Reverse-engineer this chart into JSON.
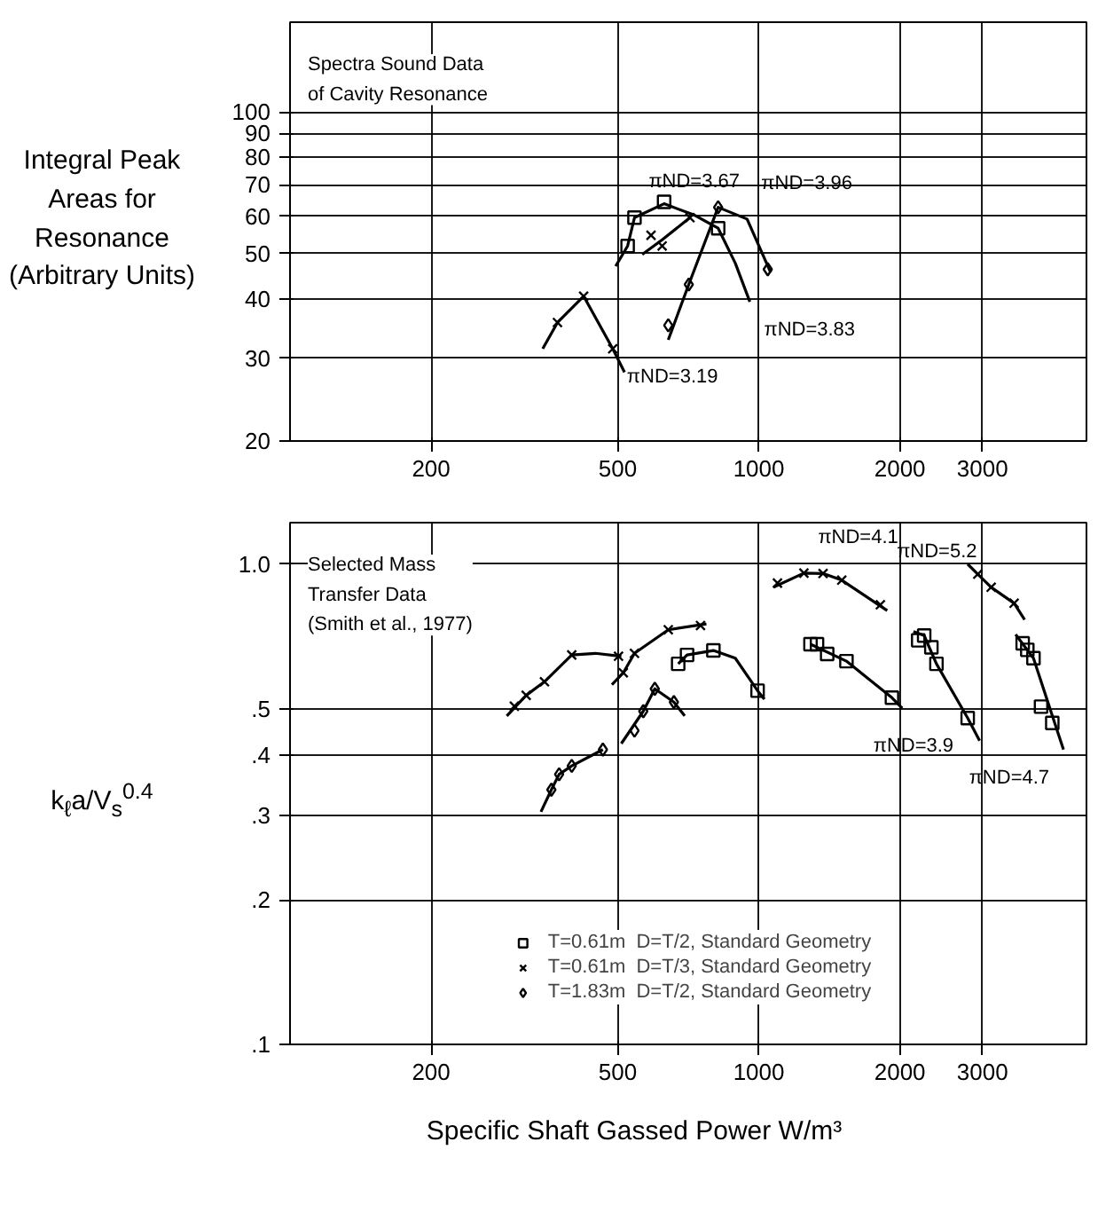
{
  "chart_data": [
    {
      "type": "scatter",
      "ylabel": "Integral Peak Areas for Resonance (Arbitrary Units)",
      "log": "xy",
      "grid": true,
      "xlim": [
        100,
        5000
      ],
      "ylim": [
        20,
        155
      ],
      "xticks": [
        200,
        500,
        1000,
        2000,
        3000
      ],
      "yticks": [
        20,
        30,
        40,
        50,
        60,
        70,
        80,
        90,
        100
      ],
      "annotations": [
        "Spectra Sound Data\nof Cavity Resonance",
        {
          "text": "πND=3.67",
          "x": 543,
          "y": 59.6
        },
        {
          "text": "πND=3.96",
          "x": 944,
          "y": 59.2
        },
        {
          "text": "πND=3.19",
          "x": 488,
          "y": 31.4
        },
        {
          "text": "πND=3.83",
          "x": 957,
          "y": 39.5
        }
      ],
      "series": [
        {
          "type": "line",
          "color": "#000000",
          "x": [
            346,
            372,
            423,
            488,
            517
          ],
          "values": [
            31.4,
            35.7,
            40.6,
            31.4,
            28.0
          ]
        },
        {
          "type": "line",
          "color": "#000000",
          "x": [
            495,
            525,
            543,
            628,
            730,
            819,
            891,
            957
          ],
          "values": [
            47.0,
            51.9,
            59.6,
            63.8,
            60.3,
            56.6,
            47.7,
            39.5
          ]
        },
        {
          "type": "line",
          "color": "#000000",
          "x": [
            564,
            622,
            713
          ],
          "values": [
            49.8,
            53.5,
            59.6
          ]
        },
        {
          "type": "line",
          "color": "#000000",
          "x": [
            641,
            709,
            819,
            944,
            1060
          ],
          "values": [
            32.8,
            43.0,
            62.7,
            59.2,
            45.6
          ]
        },
        {
          "type": "scatter",
          "marker": "square",
          "color": "#000000",
          "x": [
            525,
            543,
            628,
            819
          ],
          "values": [
            51.9,
            59.6,
            64.4,
            56.6
          ]
        },
        {
          "type": "scatter",
          "marker": "cross",
          "color": "#000000",
          "x": [
            372,
            423,
            488,
            589,
            622,
            713
          ],
          "values": [
            35.7,
            40.6,
            31.4,
            54.7,
            51.9,
            59.6
          ]
        },
        {
          "type": "scatter",
          "marker": "diamond",
          "color": "#000000",
          "x": [
            641,
            709,
            819,
            1045
          ],
          "values": [
            35.2,
            43.0,
            62.7,
            46.3
          ]
        }
      ]
    },
    {
      "type": "scatter",
      "xlabel": "Specific Shaft Gassed Power W/m³",
      "ylabel": "k$_{ℓ}$a/V$_{s}$$^{0.4}$",
      "log": "xy",
      "grid": true,
      "legend": "bottom",
      "xlim": [
        100,
        5000
      ],
      "ylim": [
        0.1,
        1.22
      ],
      "xticks": [
        200,
        500,
        1000,
        2000,
        3000
      ],
      "yticks": [
        {
          "value": 0.1,
          "label": ".1"
        },
        {
          "value": 0.2,
          "label": ".2"
        },
        {
          "value": 0.3,
          "label": ".3"
        },
        {
          "value": 0.4,
          "label": ".4"
        },
        {
          "value": 0.5,
          "label": ".5"
        },
        {
          "value": 1.0,
          "label": "1.0"
        }
      ],
      "annotations": [
        "Selected Mass\nTransfer Data\n(Smith et al., 1977)",
        {
          "text": "πND=4.1",
          "x": 1248,
          "y": 0.958
        },
        {
          "text": "πND=5.2",
          "x": 3131,
          "y": 0.895
        },
        {
          "text": "πND=3.9",
          "x": 2790,
          "y": 0.478
        },
        {
          "text": "πND=4.7",
          "x": 4466,
          "y": 0.411
        }
      ],
      "series": [
        {
          "type": "scatter",
          "name": "T=0.61m  D=T/2, Standard Geometry",
          "marker": "square",
          "color": "#000000",
          "x": [
            673,
            703,
            800,
            994,
            1289,
            1331,
            1399,
            1538,
            1923,
            2188,
            2253,
            2334,
            2393,
            2790,
            3655,
            3739,
            3854,
            4000,
            4227
          ],
          "values": [
            0.62,
            0.647,
            0.661,
            0.545,
            0.681,
            0.681,
            0.65,
            0.628,
            0.527,
            0.694,
            0.71,
            0.671,
            0.62,
            0.478,
            0.684,
            0.663,
            0.637,
            0.505,
            0.467
          ]
        },
        {
          "type": "scatter",
          "name": "T=0.61m  D=T/3, Standard Geometry",
          "marker": "cross",
          "color": "#000000",
          "x": [
            301,
            319,
            349,
            399,
            502,
            514,
            543,
            641,
            751,
            1096,
            1248,
            1371,
            1503,
            1817,
            2932,
            3131,
            3505
          ],
          "values": [
            0.506,
            0.533,
            0.569,
            0.647,
            0.643,
            0.594,
            0.652,
            0.73,
            0.745,
            0.913,
            0.958,
            0.956,
            0.926,
            0.823,
            0.953,
            0.895,
            0.829
          ]
        },
        {
          "type": "scatter",
          "name": "T=1.83m  D=T/2, Standard Geometry",
          "marker": "diamond",
          "color": "#000000",
          "x": [
            361,
            375,
            399,
            465,
            543,
            567,
            600,
            659
          ],
          "values": [
            0.339,
            0.365,
            0.38,
            0.411,
            0.45,
            0.494,
            0.55,
            0.516
          ]
        },
        {
          "type": "line",
          "color": "#000000",
          "x": [
            290,
            319,
            349,
            399,
            448,
            509
          ],
          "values": [
            0.483,
            0.533,
            0.569,
            0.647,
            0.652,
            0.643
          ]
        },
        {
          "type": "line",
          "color": "#000000",
          "x": [
            486,
            514,
            543,
            641,
            773
          ],
          "values": [
            0.561,
            0.594,
            0.652,
            0.73,
            0.751
          ]
        },
        {
          "type": "line",
          "color": "#000000",
          "x": [
            1075,
            1248,
            1371,
            1503,
            1879
          ],
          "values": [
            0.895,
            0.958,
            0.956,
            0.926,
            0.8
          ]
        },
        {
          "type": "line",
          "color": "#000000",
          "x": [
            2790,
            2932,
            3131,
            3505,
            3690
          ],
          "values": [
            1.0,
            0.953,
            0.895,
            0.829,
            0.766
          ]
        },
        {
          "type": "line",
          "color": "#000000",
          "x": [
            673,
            703,
            800,
            891,
            994,
            1028
          ],
          "values": [
            0.62,
            0.647,
            0.661,
            0.637,
            0.545,
            0.523
          ]
        },
        {
          "type": "line",
          "color": "#000000",
          "x": [
            1289,
            1538,
            1923,
            2023
          ],
          "values": [
            0.681,
            0.628,
            0.527,
            0.501
          ]
        },
        {
          "type": "line",
          "color": "#000000",
          "x": [
            2137,
            2253,
            2393,
            2790,
            2958
          ],
          "values": [
            0.724,
            0.71,
            0.62,
            0.478,
            0.429
          ]
        },
        {
          "type": "line",
          "color": "#000000",
          "x": [
            3530,
            3854,
            4200,
            4466
          ],
          "values": [
            0.714,
            0.637,
            0.493,
            0.411
          ]
        },
        {
          "type": "line",
          "color": "#000000",
          "x": [
            343,
            361,
            375,
            399,
            465
          ],
          "values": [
            0.305,
            0.339,
            0.365,
            0.38,
            0.411
          ]
        },
        {
          "type": "line",
          "color": "#000000",
          "x": [
            509,
            567,
            600,
            659,
            695
          ],
          "values": [
            0.423,
            0.494,
            0.55,
            0.516,
            0.483
          ]
        }
      ]
    }
  ]
}
